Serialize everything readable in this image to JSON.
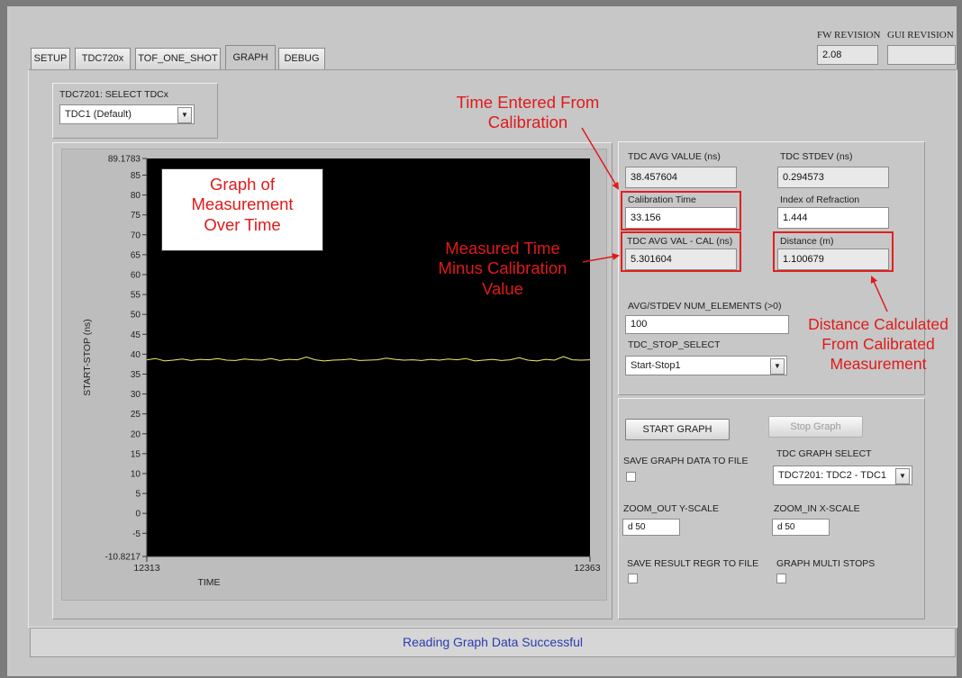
{
  "tabs": [
    "SETUP",
    "TDC720x",
    "TOF_ONE_SHOT",
    "GRAPH",
    "DEBUG"
  ],
  "active_tab": "GRAPH",
  "revision": {
    "fw_label": "FW REVISION",
    "fw_value": "2.08",
    "gui_label": "GUI REVISION",
    "gui_value": ""
  },
  "select_tdc": {
    "label": "TDC7201: SELECT TDCx",
    "value": "TDC1 (Default)"
  },
  "graph": {
    "ylabel": "START-STOP (ns)",
    "xlabel": "TIME",
    "y_ticks": [
      "89.1783",
      "85",
      "80",
      "75",
      "70",
      "65",
      "60",
      "55",
      "50",
      "45",
      "40",
      "35",
      "30",
      "25",
      "20",
      "15",
      "10",
      "5",
      "0",
      "-5",
      "-10.8217"
    ],
    "x_min": "12313",
    "x_max": "12363",
    "line_color": "#f0f070"
  },
  "chart_data": {
    "type": "line",
    "xlabel": "TIME",
    "ylabel": "START-STOP (ns)",
    "xlim": [
      12313,
      12363
    ],
    "ylim": [
      -10.8217,
      89.1783
    ],
    "x": [
      12313,
      12314,
      12315,
      12316,
      12317,
      12318,
      12319,
      12320,
      12321,
      12322,
      12323,
      12324,
      12325,
      12326,
      12327,
      12328,
      12329,
      12330,
      12331,
      12332,
      12333,
      12334,
      12335,
      12336,
      12337,
      12338,
      12339,
      12340,
      12341,
      12342,
      12343,
      12344,
      12345,
      12346,
      12347,
      12348,
      12349,
      12350,
      12351,
      12352,
      12353,
      12354,
      12355,
      12356,
      12357,
      12358,
      12359,
      12360,
      12361,
      12362,
      12363
    ],
    "values": [
      38.6,
      38.9,
      38.3,
      38.5,
      38.8,
      38.4,
      38.7,
      38.6,
      38.9,
      38.5,
      38.4,
      38.8,
      38.6,
      38.5,
      38.9,
      38.4,
      38.7,
      38.6,
      39.3,
      38.6,
      38.3,
      38.5,
      38.6,
      38.8,
      38.4,
      38.5,
      38.6,
      39.0,
      38.7,
      38.5,
      38.6,
      38.4,
      38.7,
      38.5,
      38.8,
      38.6,
      38.9,
      38.3,
      38.5,
      38.7,
      38.4,
      38.6,
      39.1,
      38.5,
      38.3,
      38.7,
      38.5,
      39.4,
      38.6,
      38.5,
      38.6
    ]
  },
  "results": {
    "avg_label": "TDC AVG VALUE (ns)",
    "avg_value": "38.457604",
    "stdev_label": "TDC STDEV (ns)",
    "stdev_value": "0.294573",
    "cal_label": "Calibration Time",
    "cal_value": "33.156",
    "ior_label": "Index of Refraction",
    "ior_value": "1.444",
    "avgcal_label": "TDC AVG VAL - CAL (ns)",
    "avgcal_value": "5.301604",
    "dist_label": "Distance (m)",
    "dist_value": "1.100679",
    "num_label": "AVG/STDEV NUM_ELEMENTS (>0)",
    "num_value": "100",
    "stop_label": "TDC_STOP_SELECT",
    "stop_value": "Start-Stop1"
  },
  "controls": {
    "start_graph": "START GRAPH",
    "stop_graph": "Stop Graph",
    "save_graph_label": "SAVE GRAPH DATA TO FILE",
    "graph_select_label": "TDC GRAPH SELECT",
    "graph_select_value": "TDC7201: TDC2 - TDC1",
    "zoom_out_label": "ZOOM_OUT Y-SCALE",
    "zoom_out_value": "d 50",
    "zoom_in_label": "ZOOM_IN X-SCALE",
    "zoom_in_value": "d 50",
    "save_result_label": "SAVE RESULT REGR TO FILE",
    "multi_stops_label": "GRAPH MULTI STOPS"
  },
  "annotations": {
    "time_entered": [
      "Time Entered From",
      "Calibration"
    ],
    "graph_of": [
      "Graph of",
      "Measurement",
      "Over Time"
    ],
    "measured_time": [
      "Measured Time",
      "Minus Calibration",
      "Value"
    ],
    "distance_calc": [
      "Distance Calculated",
      "From Calibrated",
      "Measurement"
    ]
  },
  "status": "Reading Graph Data Successful"
}
